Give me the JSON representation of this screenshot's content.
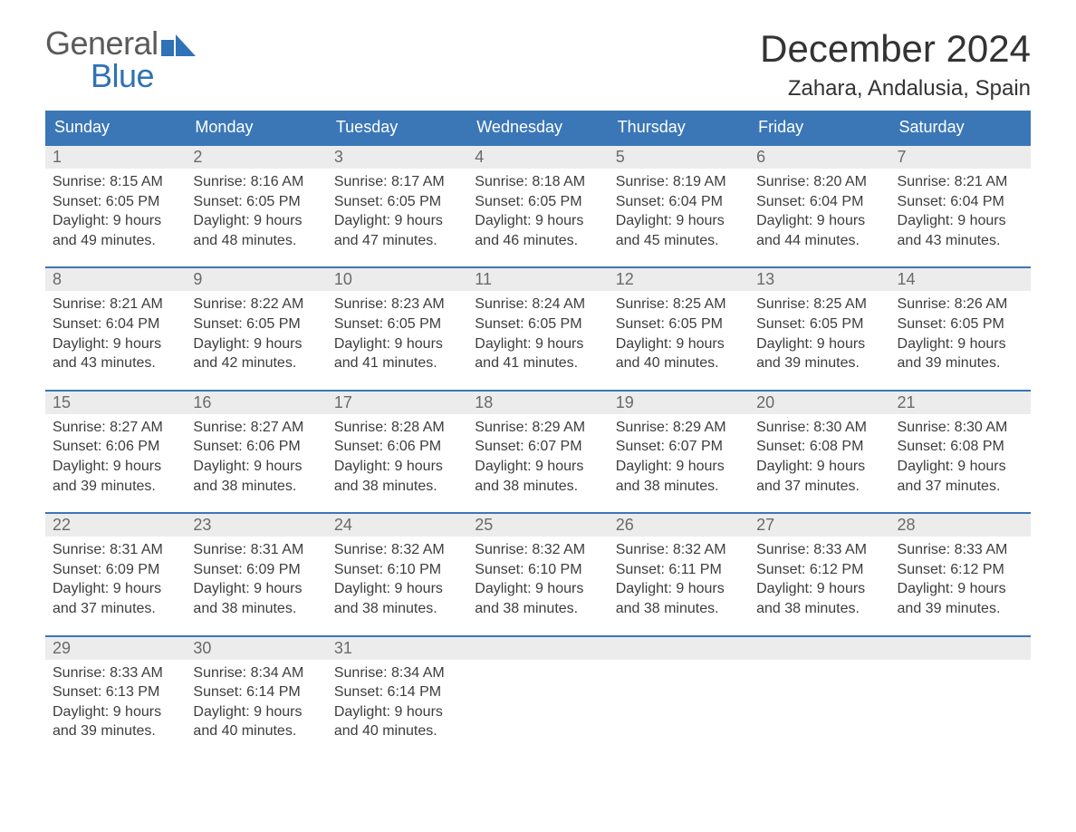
{
  "logo": {
    "word1": "General",
    "word2": "Blue",
    "text_color_gray": "#5a5a5a",
    "text_color_blue": "#2f72b6",
    "flag_color": "#2f72b6"
  },
  "title": {
    "month_year": "December 2024",
    "location": "Zahara, Andalusia, Spain",
    "title_fontsize": 42,
    "location_fontsize": 24,
    "text_color": "#333333"
  },
  "styling": {
    "background_color": "#ffffff",
    "header_row_bg": "#3b77b6",
    "header_row_text": "#ffffff",
    "daynum_row_bg": "#ececec",
    "daynum_text_color": "#6a6a6a",
    "week_top_border": "#3b77b6",
    "body_text_color": "#3d3d3d",
    "body_fontsize": 16,
    "header_fontsize": 18,
    "font_family": "Arial"
  },
  "weekdays": [
    "Sunday",
    "Monday",
    "Tuesday",
    "Wednesday",
    "Thursday",
    "Friday",
    "Saturday"
  ],
  "weeks": [
    {
      "days": [
        {
          "num": "1",
          "sunrise": "8:15 AM",
          "sunset": "6:05 PM",
          "daylight_h": "9",
          "daylight_m": "49"
        },
        {
          "num": "2",
          "sunrise": "8:16 AM",
          "sunset": "6:05 PM",
          "daylight_h": "9",
          "daylight_m": "48"
        },
        {
          "num": "3",
          "sunrise": "8:17 AM",
          "sunset": "6:05 PM",
          "daylight_h": "9",
          "daylight_m": "47"
        },
        {
          "num": "4",
          "sunrise": "8:18 AM",
          "sunset": "6:05 PM",
          "daylight_h": "9",
          "daylight_m": "46"
        },
        {
          "num": "5",
          "sunrise": "8:19 AM",
          "sunset": "6:04 PM",
          "daylight_h": "9",
          "daylight_m": "45"
        },
        {
          "num": "6",
          "sunrise": "8:20 AM",
          "sunset": "6:04 PM",
          "daylight_h": "9",
          "daylight_m": "44"
        },
        {
          "num": "7",
          "sunrise": "8:21 AM",
          "sunset": "6:04 PM",
          "daylight_h": "9",
          "daylight_m": "43"
        }
      ]
    },
    {
      "days": [
        {
          "num": "8",
          "sunrise": "8:21 AM",
          "sunset": "6:04 PM",
          "daylight_h": "9",
          "daylight_m": "43"
        },
        {
          "num": "9",
          "sunrise": "8:22 AM",
          "sunset": "6:05 PM",
          "daylight_h": "9",
          "daylight_m": "42"
        },
        {
          "num": "10",
          "sunrise": "8:23 AM",
          "sunset": "6:05 PM",
          "daylight_h": "9",
          "daylight_m": "41"
        },
        {
          "num": "11",
          "sunrise": "8:24 AM",
          "sunset": "6:05 PM",
          "daylight_h": "9",
          "daylight_m": "41"
        },
        {
          "num": "12",
          "sunrise": "8:25 AM",
          "sunset": "6:05 PM",
          "daylight_h": "9",
          "daylight_m": "40"
        },
        {
          "num": "13",
          "sunrise": "8:25 AM",
          "sunset": "6:05 PM",
          "daylight_h": "9",
          "daylight_m": "39"
        },
        {
          "num": "14",
          "sunrise": "8:26 AM",
          "sunset": "6:05 PM",
          "daylight_h": "9",
          "daylight_m": "39"
        }
      ]
    },
    {
      "days": [
        {
          "num": "15",
          "sunrise": "8:27 AM",
          "sunset": "6:06 PM",
          "daylight_h": "9",
          "daylight_m": "39"
        },
        {
          "num": "16",
          "sunrise": "8:27 AM",
          "sunset": "6:06 PM",
          "daylight_h": "9",
          "daylight_m": "38"
        },
        {
          "num": "17",
          "sunrise": "8:28 AM",
          "sunset": "6:06 PM",
          "daylight_h": "9",
          "daylight_m": "38"
        },
        {
          "num": "18",
          "sunrise": "8:29 AM",
          "sunset": "6:07 PM",
          "daylight_h": "9",
          "daylight_m": "38"
        },
        {
          "num": "19",
          "sunrise": "8:29 AM",
          "sunset": "6:07 PM",
          "daylight_h": "9",
          "daylight_m": "38"
        },
        {
          "num": "20",
          "sunrise": "8:30 AM",
          "sunset": "6:08 PM",
          "daylight_h": "9",
          "daylight_m": "37"
        },
        {
          "num": "21",
          "sunrise": "8:30 AM",
          "sunset": "6:08 PM",
          "daylight_h": "9",
          "daylight_m": "37"
        }
      ]
    },
    {
      "days": [
        {
          "num": "22",
          "sunrise": "8:31 AM",
          "sunset": "6:09 PM",
          "daylight_h": "9",
          "daylight_m": "37"
        },
        {
          "num": "23",
          "sunrise": "8:31 AM",
          "sunset": "6:09 PM",
          "daylight_h": "9",
          "daylight_m": "38"
        },
        {
          "num": "24",
          "sunrise": "8:32 AM",
          "sunset": "6:10 PM",
          "daylight_h": "9",
          "daylight_m": "38"
        },
        {
          "num": "25",
          "sunrise": "8:32 AM",
          "sunset": "6:10 PM",
          "daylight_h": "9",
          "daylight_m": "38"
        },
        {
          "num": "26",
          "sunrise": "8:32 AM",
          "sunset": "6:11 PM",
          "daylight_h": "9",
          "daylight_m": "38"
        },
        {
          "num": "27",
          "sunrise": "8:33 AM",
          "sunset": "6:12 PM",
          "daylight_h": "9",
          "daylight_m": "38"
        },
        {
          "num": "28",
          "sunrise": "8:33 AM",
          "sunset": "6:12 PM",
          "daylight_h": "9",
          "daylight_m": "39"
        }
      ]
    },
    {
      "days": [
        {
          "num": "29",
          "sunrise": "8:33 AM",
          "sunset": "6:13 PM",
          "daylight_h": "9",
          "daylight_m": "39"
        },
        {
          "num": "30",
          "sunrise": "8:34 AM",
          "sunset": "6:14 PM",
          "daylight_h": "9",
          "daylight_m": "40"
        },
        {
          "num": "31",
          "sunrise": "8:34 AM",
          "sunset": "6:14 PM",
          "daylight_h": "9",
          "daylight_m": "40"
        },
        null,
        null,
        null,
        null
      ]
    }
  ],
  "labels": {
    "sunrise_prefix": "Sunrise: ",
    "sunset_prefix": "Sunset: ",
    "daylight_prefix": "Daylight: ",
    "hours_word": " hours",
    "and_word": "and ",
    "minutes_word": " minutes."
  }
}
